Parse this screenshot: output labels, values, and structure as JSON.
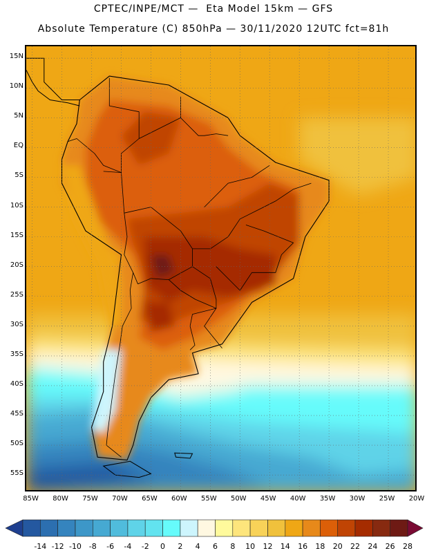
{
  "header": {
    "line1": "CPTEC/INPE/MCT —  Eta Model 15km — GFS",
    "line2": "Absolute Temperature (C) 850hPa — 30/11/2020 12UTC fct=81h"
  },
  "map": {
    "lon_range": [
      -86,
      -20
    ],
    "lat_range": [
      -58,
      17
    ],
    "grid": true,
    "lat_ticks": [
      {
        "value": 15,
        "label": "15N"
      },
      {
        "value": 10,
        "label": "10N"
      },
      {
        "value": 5,
        "label": "5N"
      },
      {
        "value": 0,
        "label": "EQ"
      },
      {
        "value": -5,
        "label": "5S"
      },
      {
        "value": -10,
        "label": "10S"
      },
      {
        "value": -15,
        "label": "15S"
      },
      {
        "value": -20,
        "label": "20S"
      },
      {
        "value": -25,
        "label": "25S"
      },
      {
        "value": -30,
        "label": "30S"
      },
      {
        "value": -35,
        "label": "35S"
      },
      {
        "value": -40,
        "label": "40S"
      },
      {
        "value": -45,
        "label": "45S"
      },
      {
        "value": -50,
        "label": "50S"
      },
      {
        "value": -55,
        "label": "55S"
      }
    ],
    "lon_ticks": [
      {
        "value": -85,
        "label": "85W"
      },
      {
        "value": -80,
        "label": "80W"
      },
      {
        "value": -75,
        "label": "75W"
      },
      {
        "value": -70,
        "label": "70W"
      },
      {
        "value": -65,
        "label": "65W"
      },
      {
        "value": -60,
        "label": "60W"
      },
      {
        "value": -55,
        "label": "55W"
      },
      {
        "value": -50,
        "label": "50W"
      },
      {
        "value": -45,
        "label": "45W"
      },
      {
        "value": -40,
        "label": "40W"
      },
      {
        "value": -35,
        "label": "35W"
      },
      {
        "value": -30,
        "label": "30W"
      },
      {
        "value": -25,
        "label": "25W"
      },
      {
        "value": -20,
        "label": "20W"
      }
    ]
  },
  "legend": {
    "labels": [
      "-14",
      "-12",
      "-10",
      "-8",
      "-6",
      "-4",
      "-2",
      "0",
      "2",
      "4",
      "6",
      "8",
      "10",
      "12",
      "14",
      "16",
      "18",
      "20",
      "22",
      "24",
      "26",
      "28"
    ],
    "colors": [
      "#1e3f8f",
      "#2458a0",
      "#2c6fb0",
      "#3584be",
      "#3d97c8",
      "#46a9d2",
      "#50bcdc",
      "#5fd3e8",
      "#62e3ef",
      "#66fbfb",
      "#cdf5fd",
      "#fff8e1",
      "#fffa9c",
      "#fde57c",
      "#f8d258",
      "#f0c13c",
      "#efa715",
      "#e7891a",
      "#dc5f08",
      "#c04404",
      "#a52c00",
      "#872a10",
      "#6e1a14",
      "#7a0a33"
    ]
  }
}
